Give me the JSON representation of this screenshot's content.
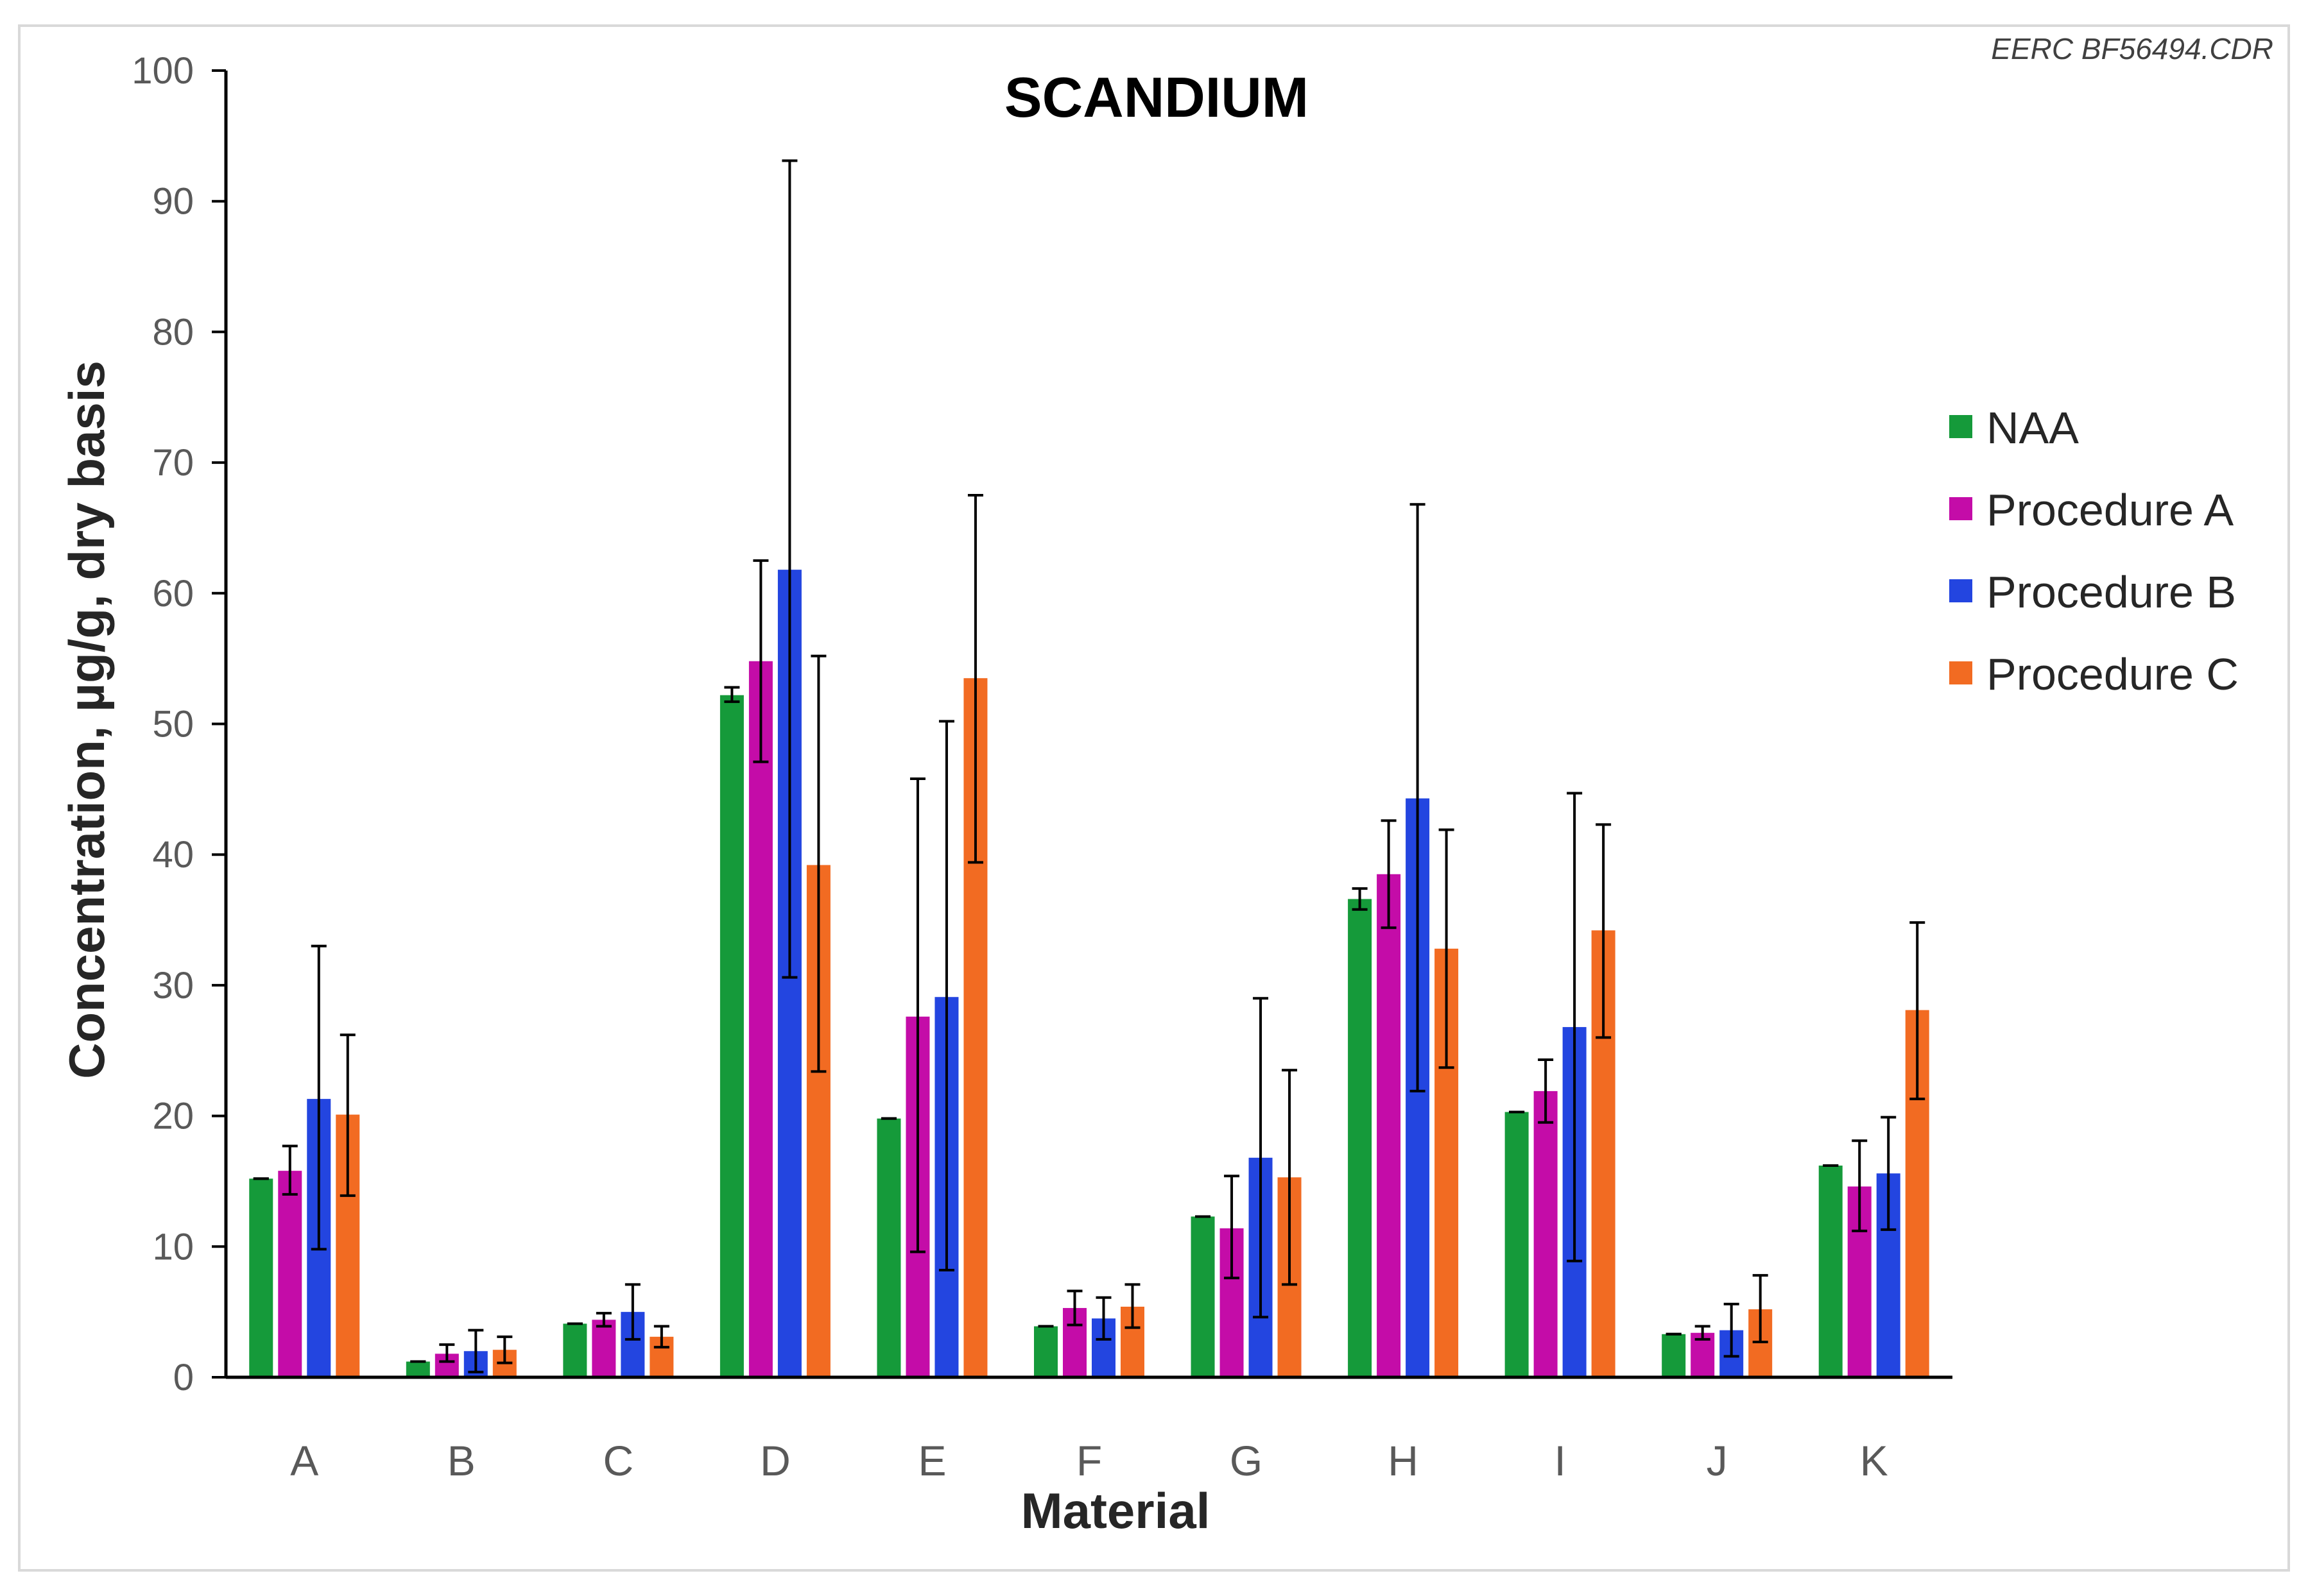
{
  "chart_data": {
    "type": "bar",
    "title": "SCANDIUM",
    "xlabel": "Material",
    "ylabel": "Concentration, µg/g, dry basis",
    "ylim": [
      0,
      100
    ],
    "yticks": [
      0,
      10,
      20,
      30,
      40,
      50,
      60,
      70,
      80,
      90,
      100
    ],
    "categories": [
      "A",
      "B",
      "C",
      "D",
      "E",
      "F",
      "G",
      "H",
      "I",
      "J",
      "K"
    ],
    "legend_position": "right",
    "series": [
      {
        "name": "NAA",
        "color": "#159a3a",
        "values": [
          15.2,
          1.2,
          4.1,
          52.2,
          19.8,
          3.9,
          12.3,
          36.6,
          20.3,
          3.3,
          16.2
        ],
        "err_low": [
          15.2,
          1.2,
          4.1,
          51.7,
          19.8,
          3.9,
          12.3,
          35.8,
          20.3,
          3.3,
          16.2
        ],
        "err_high": [
          15.2,
          1.2,
          4.1,
          52.8,
          19.8,
          3.9,
          12.3,
          37.4,
          20.3,
          3.3,
          16.2
        ]
      },
      {
        "name": "Procedure A",
        "color": "#c40ca8",
        "values": [
          15.8,
          1.8,
          4.4,
          54.8,
          27.6,
          5.3,
          11.4,
          38.5,
          21.9,
          3.4,
          14.6
        ],
        "err_low": [
          14.0,
          1.2,
          3.9,
          47.1,
          9.6,
          4.0,
          7.6,
          34.4,
          19.5,
          2.9,
          11.2
        ],
        "err_high": [
          17.7,
          2.5,
          4.9,
          62.5,
          45.8,
          6.6,
          15.4,
          42.6,
          24.3,
          3.9,
          18.1
        ]
      },
      {
        "name": "Procedure B",
        "color": "#2345e0",
        "values": [
          21.3,
          2.0,
          5.0,
          61.8,
          29.1,
          4.5,
          16.8,
          44.3,
          26.8,
          3.6,
          15.6
        ],
        "err_low": [
          9.8,
          0.4,
          2.9,
          30.6,
          8.2,
          2.9,
          4.6,
          21.9,
          8.9,
          1.6,
          11.3
        ],
        "err_high": [
          33.0,
          3.6,
          7.1,
          93.1,
          50.2,
          6.1,
          29.0,
          66.8,
          44.7,
          5.6,
          19.9
        ]
      },
      {
        "name": "Procedure C",
        "color": "#f26b22",
        "values": [
          20.1,
          2.1,
          3.1,
          39.2,
          53.5,
          5.4,
          15.3,
          32.8,
          34.2,
          5.2,
          28.1
        ],
        "err_low": [
          13.9,
          1.1,
          2.3,
          23.4,
          39.4,
          3.8,
          7.1,
          23.7,
          26.0,
          2.7,
          21.3
        ],
        "err_high": [
          26.2,
          3.1,
          3.9,
          55.2,
          67.5,
          7.1,
          23.5,
          41.9,
          42.3,
          7.8,
          34.8
        ]
      }
    ]
  },
  "figure_code": "EERC BF56494.CDR"
}
